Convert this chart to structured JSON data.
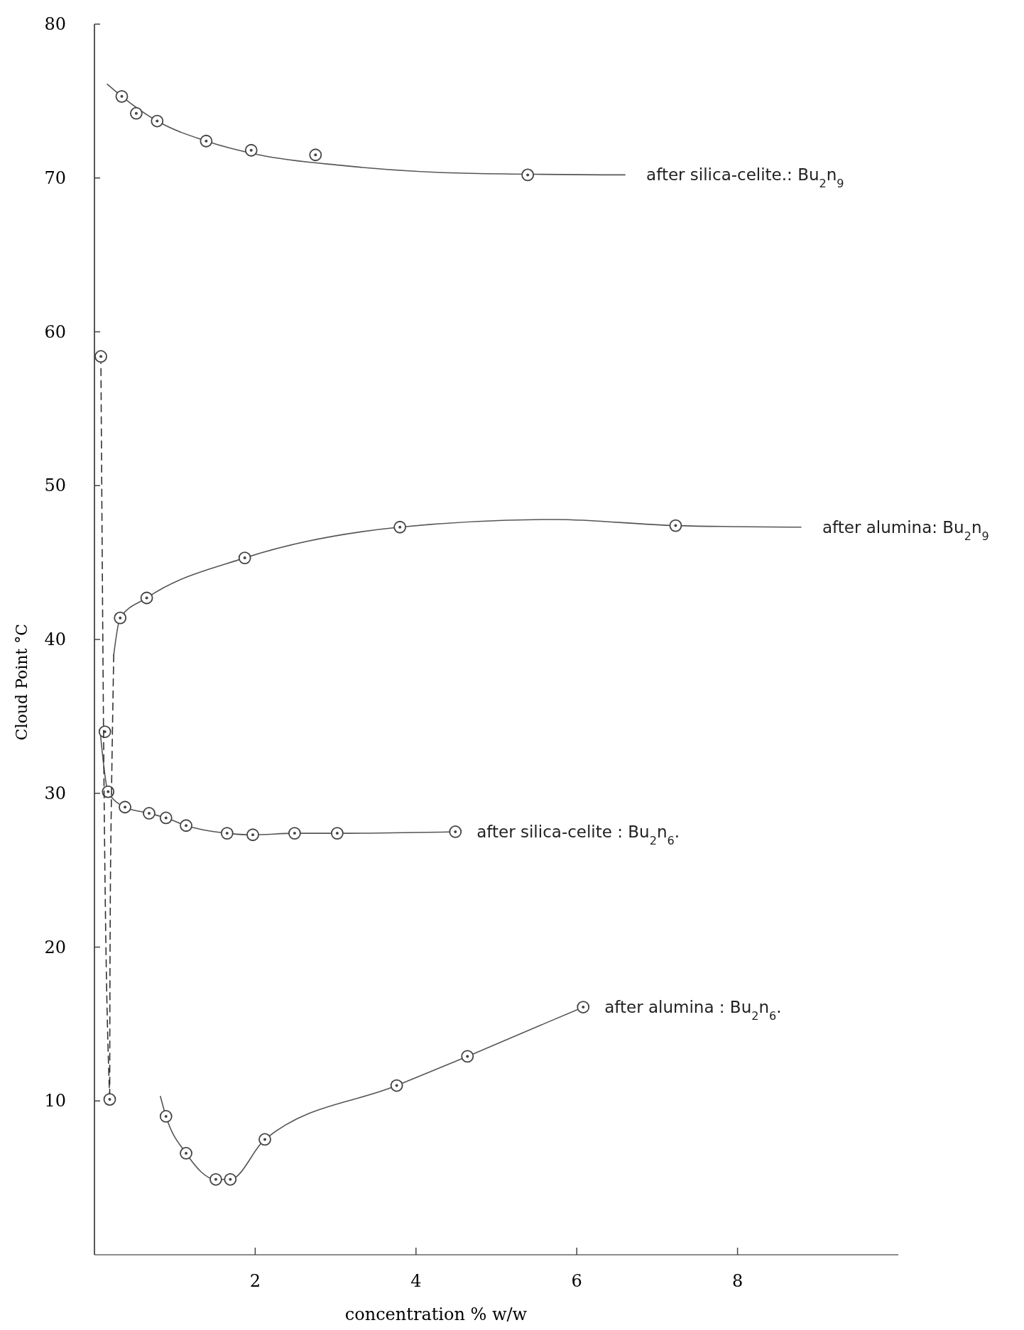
{
  "chart_data": {
    "type": "line",
    "xlabel": "concentration % w/w",
    "ylabel": "Cloud Point °C",
    "xlim": [
      0,
      10
    ],
    "ylim": [
      0,
      80
    ],
    "xticks": [
      2,
      4,
      6,
      8
    ],
    "yticks": [
      10,
      20,
      30,
      40,
      50,
      60,
      70,
      80
    ],
    "grid": false,
    "series": [
      {
        "name": "after silica-celite.: Bu$_{2}$n$_{9}$",
        "color": "#555555",
        "line_style": "solid",
        "x": [
          0.16,
          0.34,
          0.78,
          1.39,
          2.05,
          3.1,
          4.68,
          6.6
        ],
        "values": [
          76.1,
          75.3,
          73.7,
          72.4,
          71.5,
          70.8,
          70.3,
          70.2
        ]
      },
      {
        "type": "scatter",
        "color": "#444444",
        "marker": "circle",
        "x": [
          0.34,
          0.52,
          0.78,
          1.39,
          1.95,
          2.75,
          5.39
        ],
        "values": [
          75.3,
          74.2,
          73.7,
          72.4,
          71.8,
          71.5,
          70.2
        ]
      },
      {
        "name": "after alumina: Bu$_{2}$n$_{9}$",
        "color": "#555555",
        "line_style": "solid",
        "x": [
          0.24,
          0.32,
          0.65,
          1.87,
          3.8,
          5.74,
          7.23,
          8.79
        ],
        "values": [
          39.0,
          41.4,
          42.7,
          45.3,
          47.3,
          47.8,
          47.4,
          47.3
        ]
      },
      {
        "type": "scatter",
        "color": "#444444",
        "marker": "circle",
        "x": [
          0.32,
          0.65,
          1.87,
          3.8,
          7.23
        ],
        "values": [
          41.4,
          42.7,
          45.3,
          47.3,
          47.4
        ]
      },
      {
        "name": "after silica-celite : Bu$_{2}$n$_{6}$.",
        "color": "#555555",
        "line_style": "solid",
        "x": [
          0.07,
          0.17,
          0.38,
          0.68,
          0.89,
          1.14,
          1.65,
          1.97,
          2.49,
          3.02,
          4.49
        ],
        "values": [
          34.1,
          30.1,
          29.1,
          28.7,
          28.4,
          27.9,
          27.4,
          27.3,
          27.4,
          27.4,
          27.5
        ]
      },
      {
        "type": "scatter",
        "color": "#444444",
        "marker": "circle",
        "x": [
          0.13,
          0.17,
          0.38,
          0.68,
          0.89,
          1.14,
          1.65,
          1.97,
          2.49,
          3.02,
          4.49
        ],
        "values": [
          34.0,
          30.1,
          29.1,
          28.7,
          28.4,
          27.9,
          27.4,
          27.3,
          27.4,
          27.4,
          27.5
        ]
      },
      {
        "name": "after alumina : Bu$_{2}$n$_{6}$.",
        "color": "#555555",
        "line_style": "solid",
        "x": [
          0.82,
          0.89,
          1.14,
          1.51,
          1.69,
          2.12,
          3.76,
          4.64,
          6.08
        ],
        "values": [
          10.3,
          9.0,
          6.6,
          4.9,
          4.9,
          7.5,
          11.0,
          12.9,
          16.1
        ]
      },
      {
        "type": "scatter",
        "color": "#444444",
        "marker": "circle",
        "x": [
          0.89,
          1.14,
          1.51,
          1.69,
          2.12,
          3.76,
          4.64,
          6.08
        ],
        "values": [
          9.0,
          6.6,
          4.9,
          4.9,
          7.5,
          11.0,
          12.9,
          16.1
        ]
      },
      {
        "type": "line",
        "color": "#333333",
        "line_style": "dashed",
        "x": [
          0.08,
          0.12,
          0.19
        ],
        "values": [
          58.4,
          30.0,
          10.1
        ]
      },
      {
        "type": "line",
        "color": "#333333",
        "line_style": "dashed",
        "x": [
          0.24,
          0.2,
          0.19
        ],
        "values": [
          39.0,
          25.0,
          10.1
        ]
      },
      {
        "type": "scatter",
        "color": "#444444",
        "marker": "circle",
        "x": [
          0.08,
          0.19
        ],
        "values": [
          58.4,
          10.1
        ]
      }
    ]
  }
}
